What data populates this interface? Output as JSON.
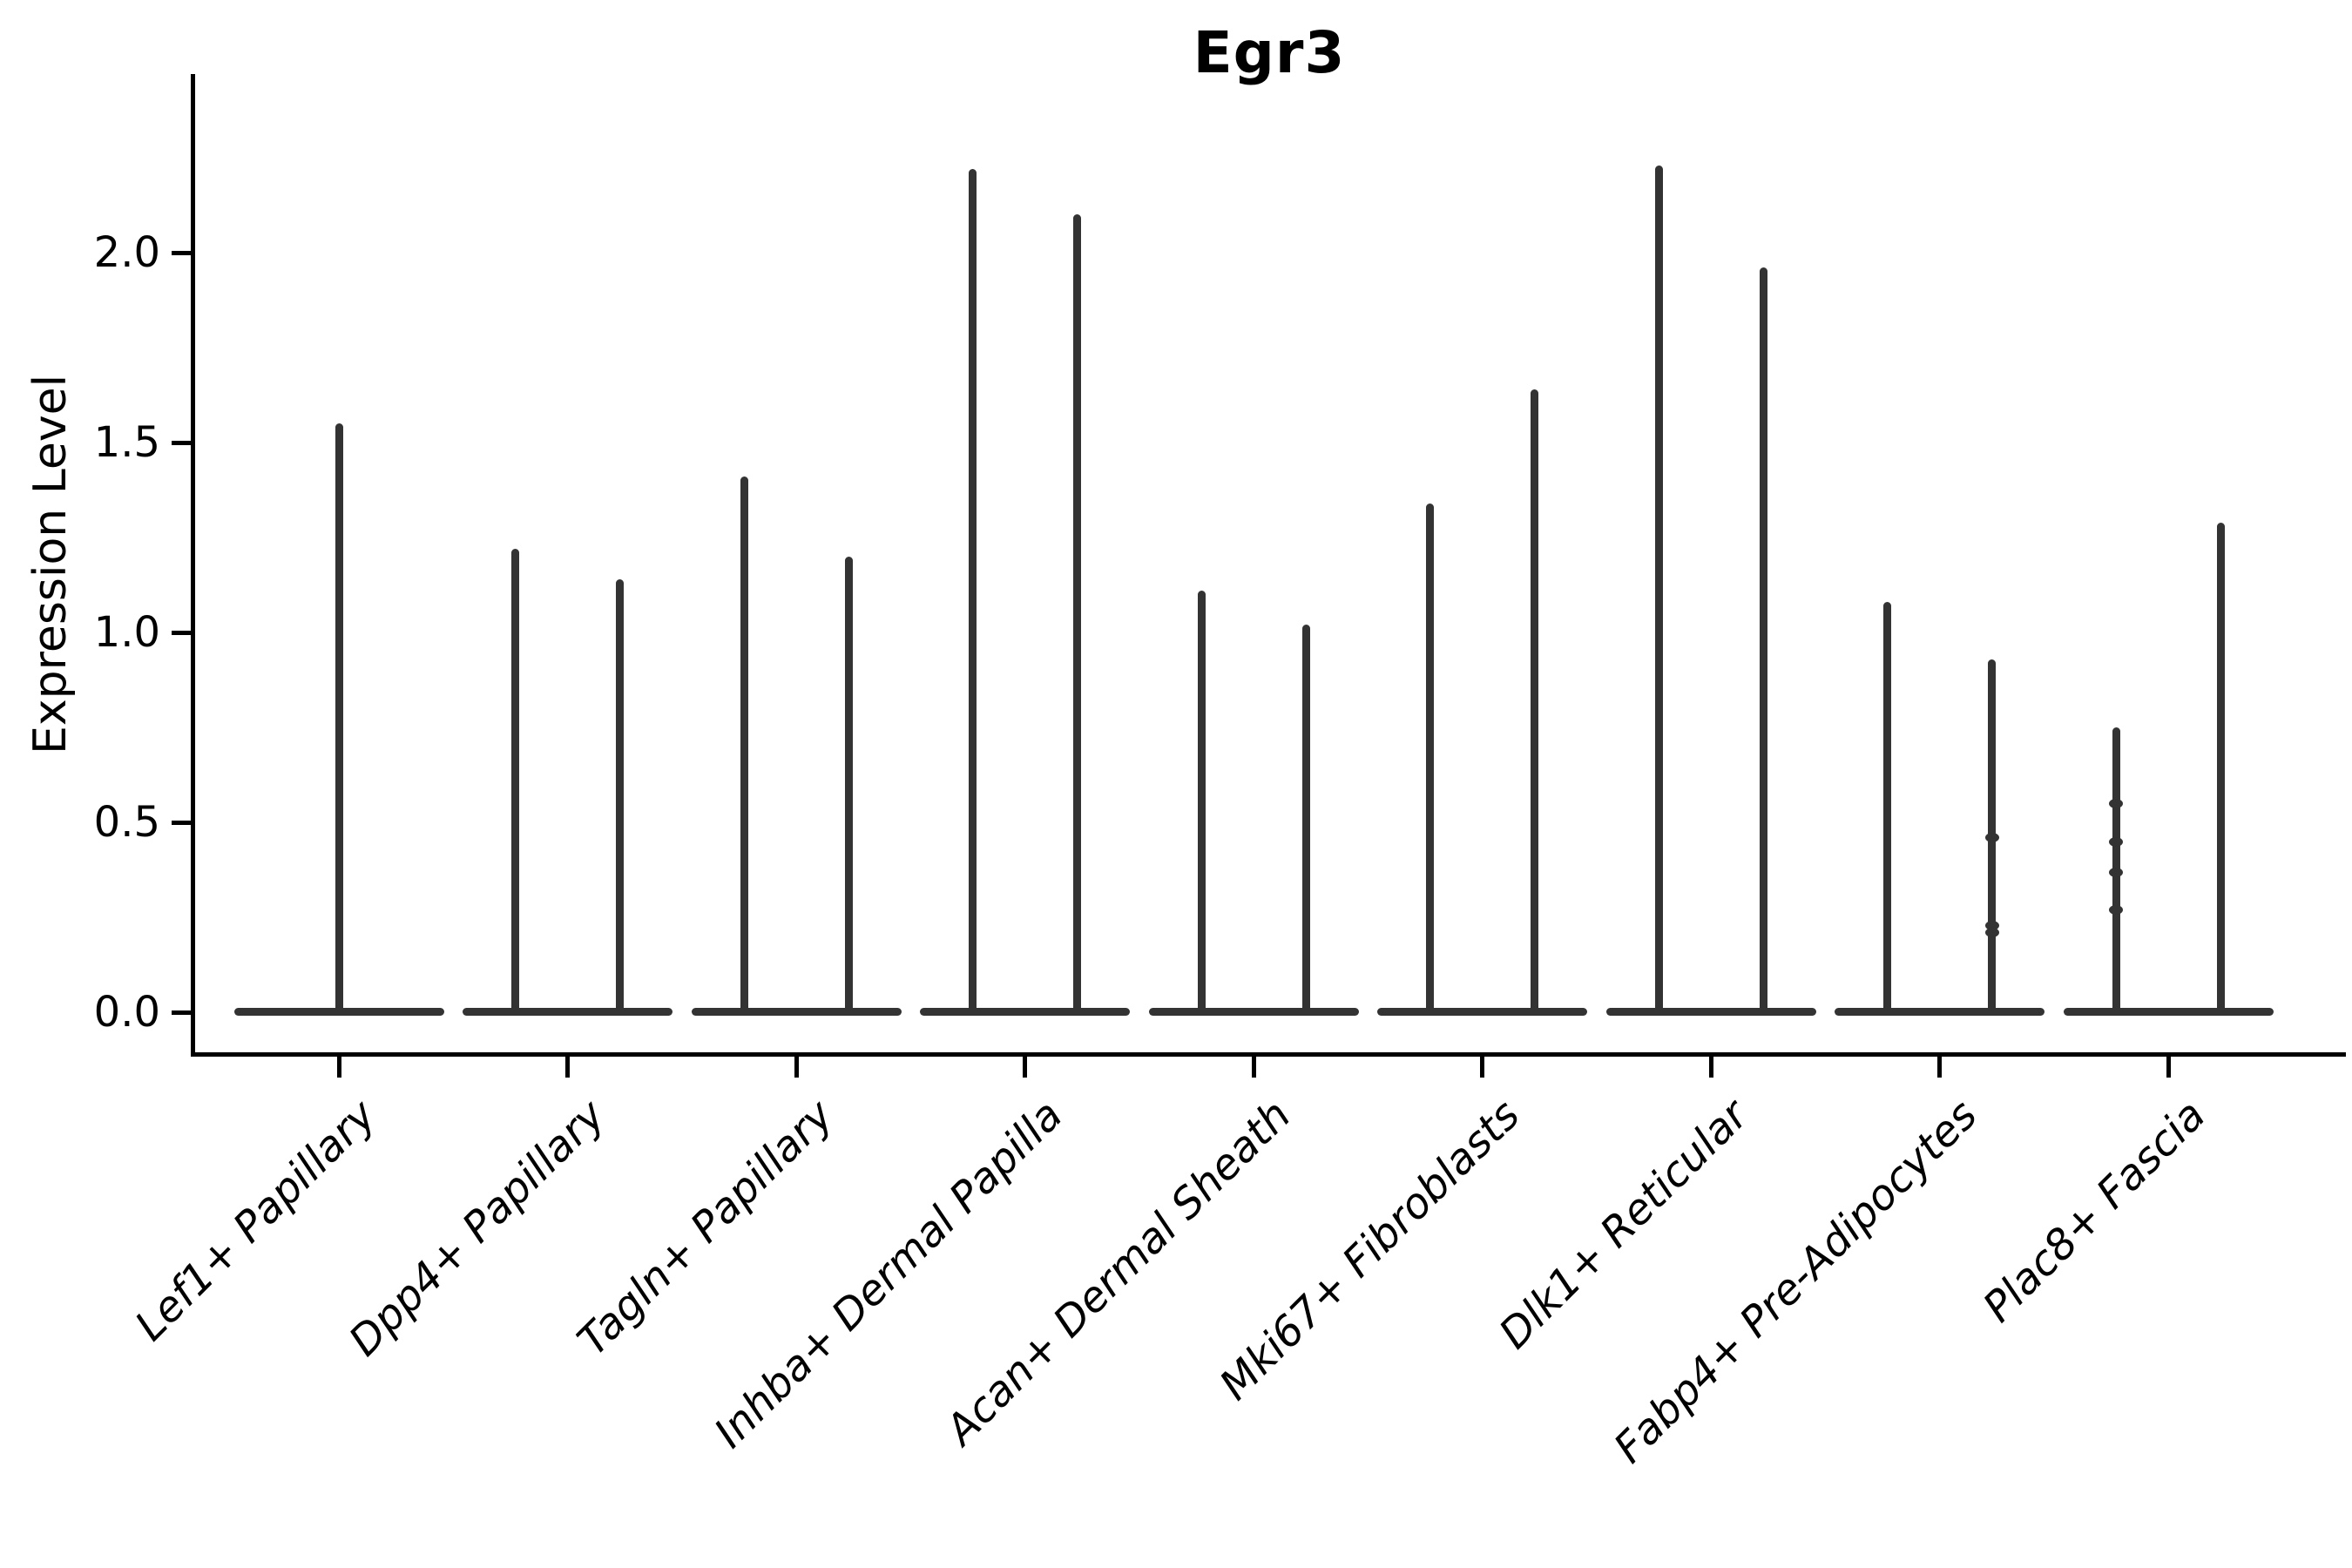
{
  "title": "Egr3",
  "chart_data": {
    "type": "violin",
    "title": "Egr3",
    "xlabel": "",
    "ylabel": "Expression Level",
    "yticks": [
      0.0,
      0.5,
      1.0,
      1.5,
      2.0
    ],
    "ylim": [
      -0.12,
      2.47
    ],
    "grid": false,
    "legend": "none",
    "ink_color": "#333333",
    "axis_color": "#000000",
    "categories": [
      "Lef1+ Papillary",
      "Dpp4+ Papillary",
      "Tagln+ Papillary",
      "Inhba+ Dermal Papilla",
      "Acan+ Dermal Sheath",
      "Mki67+ Fibroblasts",
      "Dlk1+ Reticular",
      "Fabp4+ Pre-Adipocytes",
      "Plac8+ Fascia"
    ],
    "description": "Zero-inflated expression violins: each category shows a wide flat base at 0 with thin needle-like violins; needle tip = maximum expression level",
    "violin_max": [
      [
        1.55
      ],
      [
        1.22,
        1.14
      ],
      [
        1.41,
        1.2
      ],
      [
        2.22,
        2.1
      ],
      [
        1.11,
        1.02
      ],
      [
        1.34,
        1.64
      ],
      [
        2.23,
        1.96
      ],
      [
        1.08,
        0.93
      ],
      [
        0.75,
        1.29
      ]
    ],
    "jitter_points": [
      {
        "cat": 7,
        "violin": 1,
        "values": [
          0.46,
          0.23,
          0.21
        ]
      },
      {
        "cat": 8,
        "violin": 0,
        "values": [
          0.55,
          0.45,
          0.37,
          0.27
        ]
      }
    ]
  }
}
